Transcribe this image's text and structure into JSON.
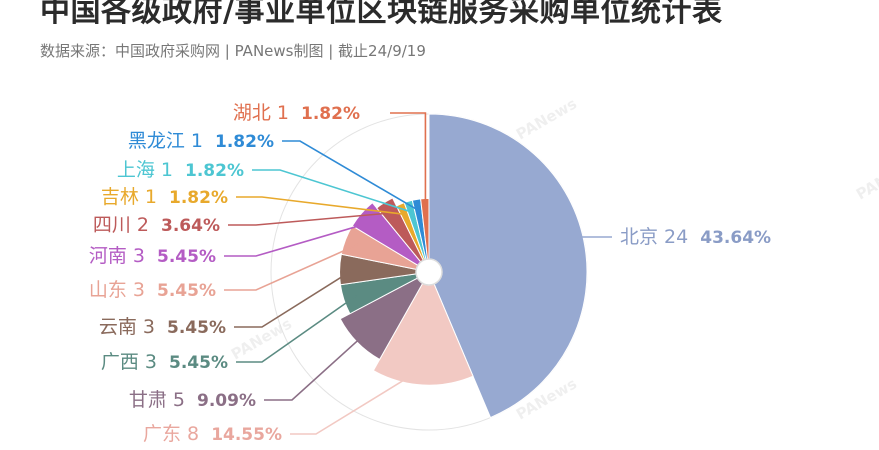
{
  "header": {
    "title": "中国各级政府/事业单位区块链服务采购单位统计表",
    "source": "数据来源：中国政府采购网 | PANews制图 | 截止24/9/19"
  },
  "watermark": "PANews",
  "chart_data": {
    "type": "pie",
    "categories": [
      "北京",
      "广东",
      "甘肃",
      "广西",
      "云南",
      "山东",
      "河南",
      "四川",
      "吉林",
      "上海",
      "黑龙江",
      "湖北"
    ],
    "values": [
      24,
      8,
      5,
      3,
      3,
      3,
      3,
      2,
      1,
      1,
      1,
      1
    ],
    "percent_labels": [
      "43.64%",
      "14.55%",
      "9.09%",
      "5.45%",
      "5.45%",
      "5.45%",
      "5.45%",
      "3.64%",
      "1.82%",
      "1.82%",
      "1.82%",
      "1.82%"
    ],
    "colors": [
      "#97a9d1",
      "#f2c9c3",
      "#8b6f86",
      "#5b8b82",
      "#8a6a5c",
      "#e8a395",
      "#b45cc4",
      "#bd5a5a",
      "#e8a92c",
      "#4dc6d2",
      "#2f8bd6",
      "#e0704f"
    ]
  }
}
